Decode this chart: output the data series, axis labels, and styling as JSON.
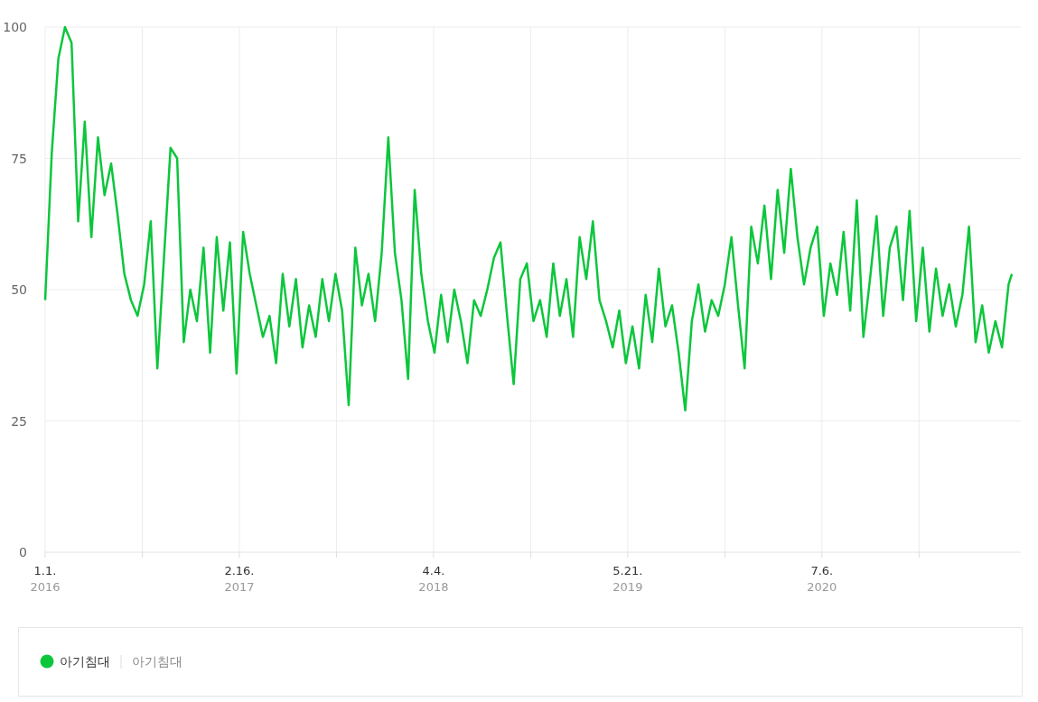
{
  "chart_data": {
    "type": "line",
    "xlim": [
      "2016-01-01",
      "2021-09-01"
    ],
    "ylim": [
      0,
      100
    ],
    "yticks": [
      0,
      25,
      50,
      75,
      100
    ],
    "xticks": [
      {
        "value": "2016-01-01",
        "label": "1.1.\n2016"
      },
      {
        "value": "2016-07-25",
        "label": null
      },
      {
        "value": "2017-02-16",
        "label": "2.16.\n2017"
      },
      {
        "value": "2017-09-10",
        "label": null
      },
      {
        "value": "2018-04-04",
        "label": "4.4.\n2018"
      },
      {
        "value": "2018-10-27",
        "label": null
      },
      {
        "value": "2019-05-21",
        "label": "5.21.\n2019"
      },
      {
        "value": "2019-12-13",
        "label": null
      },
      {
        "value": "2020-07-06",
        "label": "7.6.\n2020"
      },
      {
        "value": "2021-01-28",
        "label": null
      }
    ],
    "grid": true,
    "legend": "bottom",
    "line_style": "solid",
    "marker": "none",
    "annotations": [
      "아기침대"
    ],
    "series": [
      {
        "name": "아기침대",
        "color": "#0cc63c",
        "x": [
          "2016-01-01",
          "2016-01-15",
          "2016-01-29",
          "2016-02-12",
          "2016-02-26",
          "2016-03-11",
          "2016-03-25",
          "2016-04-08",
          "2016-04-22",
          "2016-05-06",
          "2016-05-20",
          "2016-06-03",
          "2016-06-17",
          "2016-07-01",
          "2016-07-15",
          "2016-07-29",
          "2016-08-12",
          "2016-08-26",
          "2016-09-09",
          "2016-09-23",
          "2016-10-07",
          "2016-10-21",
          "2016-11-04",
          "2016-11-18",
          "2016-12-02",
          "2016-12-16",
          "2016-12-30",
          "2017-01-13",
          "2017-01-27",
          "2017-02-10",
          "2017-02-24",
          "2017-03-10",
          "2017-03-24",
          "2017-04-07",
          "2017-04-21",
          "2017-05-05",
          "2017-05-19",
          "2017-06-02",
          "2017-06-16",
          "2017-06-30",
          "2017-07-14",
          "2017-07-28",
          "2017-08-11",
          "2017-08-25",
          "2017-09-08",
          "2017-09-22",
          "2017-10-06",
          "2017-10-20",
          "2017-11-03",
          "2017-11-17",
          "2017-12-01",
          "2017-12-15",
          "2017-12-29",
          "2018-01-12",
          "2018-01-26",
          "2018-02-09",
          "2018-02-23",
          "2018-03-09",
          "2018-03-23",
          "2018-04-06",
          "2018-04-20",
          "2018-05-04",
          "2018-05-18",
          "2018-06-01",
          "2018-06-15",
          "2018-06-29",
          "2018-07-13",
          "2018-07-27",
          "2018-08-10",
          "2018-08-24",
          "2018-09-07",
          "2018-09-21",
          "2018-10-05",
          "2018-10-19",
          "2018-11-02",
          "2018-11-16",
          "2018-11-30",
          "2018-12-14",
          "2018-12-28",
          "2019-01-11",
          "2019-01-25",
          "2019-02-08",
          "2019-02-22",
          "2019-03-08",
          "2019-03-22",
          "2019-04-05",
          "2019-04-19",
          "2019-05-03",
          "2019-05-17",
          "2019-05-31",
          "2019-06-14",
          "2019-06-28",
          "2019-07-12",
          "2019-07-26",
          "2019-08-09",
          "2019-08-23",
          "2019-09-06",
          "2019-09-20",
          "2019-10-04",
          "2019-10-18",
          "2019-11-01",
          "2019-11-15",
          "2019-11-29",
          "2019-12-13",
          "2019-12-27",
          "2020-01-10",
          "2020-01-24",
          "2020-02-07",
          "2020-02-21",
          "2020-03-06",
          "2020-03-20",
          "2020-04-03",
          "2020-04-17",
          "2020-05-01",
          "2020-05-15",
          "2020-05-29",
          "2020-06-12",
          "2020-06-26",
          "2020-07-10",
          "2020-07-24",
          "2020-08-07",
          "2020-08-21",
          "2020-09-04",
          "2020-09-18",
          "2020-10-02",
          "2020-10-16",
          "2020-10-30",
          "2020-11-13",
          "2020-11-27",
          "2020-12-11",
          "2020-12-25",
          "2021-01-08",
          "2021-01-22",
          "2021-02-05",
          "2021-02-19",
          "2021-03-05",
          "2021-03-19",
          "2021-04-02",
          "2021-04-16",
          "2021-04-30",
          "2021-05-14",
          "2021-05-28",
          "2021-06-11",
          "2021-06-25",
          "2021-07-09",
          "2021-07-23",
          "2021-08-06",
          "2021-08-13"
        ],
        "values": [
          48,
          76,
          94,
          100,
          97,
          63,
          82,
          60,
          79,
          68,
          74,
          64,
          53,
          48,
          45,
          51,
          63,
          35,
          56,
          77,
          75,
          40,
          50,
          44,
          58,
          38,
          60,
          46,
          59,
          34,
          61,
          53,
          47,
          41,
          45,
          36,
          53,
          43,
          52,
          39,
          47,
          41,
          52,
          44,
          53,
          46,
          28,
          58,
          47,
          53,
          44,
          57,
          79,
          57,
          48,
          33,
          69,
          53,
          44,
          38,
          49,
          40,
          50,
          44,
          36,
          48,
          45,
          50,
          56,
          59,
          45,
          32,
          52,
          55,
          44,
          48,
          41,
          55,
          45,
          52,
          41,
          60,
          52,
          63,
          48,
          44,
          39,
          46,
          36,
          43,
          35,
          49,
          40,
          54,
          43,
          47,
          38,
          27,
          44,
          51,
          42,
          48,
          45,
          51,
          60,
          47,
          35,
          62,
          55,
          66,
          52,
          69,
          57,
          73,
          60,
          51,
          58,
          62,
          45,
          55,
          49,
          61,
          46,
          67,
          41,
          52,
          64,
          45,
          58,
          62,
          48,
          65,
          44,
          58,
          42,
          54,
          45,
          51,
          43,
          49,
          62,
          40,
          47,
          38,
          44,
          39,
          51,
          53
        ]
      }
    ]
  }
}
